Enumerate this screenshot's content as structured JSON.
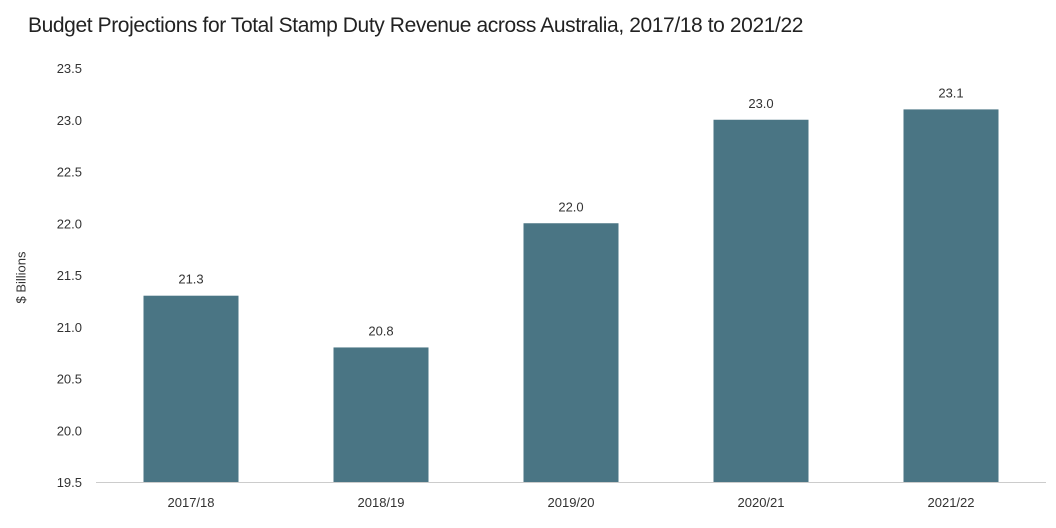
{
  "chart_data": {
    "type": "bar",
    "title": "Budget Projections for Total Stamp Duty Revenue across Australia, 2017/18 to 2021/22",
    "xlabel": "",
    "ylabel": "$ Billions",
    "categories": [
      "2017/18",
      "2018/19",
      "2019/20",
      "2020/21",
      "2021/22"
    ],
    "values": [
      21.3,
      20.8,
      22.0,
      23.0,
      23.1
    ],
    "data_labels": [
      "21.3",
      "20.8",
      "22.0",
      "23.0",
      "23.1"
    ],
    "ylim": [
      19.5,
      23.5
    ],
    "yticks": [
      19.5,
      20.0,
      20.5,
      21.0,
      21.5,
      22.0,
      22.5,
      23.0,
      23.5
    ],
    "ytick_labels": [
      "19.5",
      "20.0",
      "20.5",
      "21.0",
      "21.5",
      "22.0",
      "22.5",
      "23.0",
      "23.5"
    ],
    "grid": false,
    "legend": "none",
    "bar_color": "#4a7584",
    "axis_color": "#cccccc"
  }
}
